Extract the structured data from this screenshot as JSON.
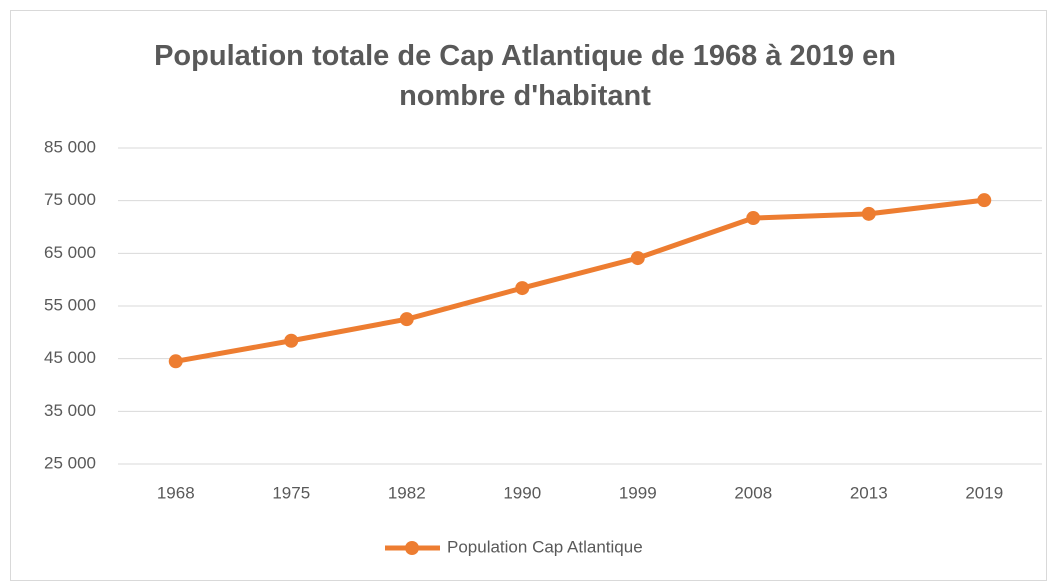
{
  "chart_data": {
    "type": "line",
    "title": "Population totale de Cap Atlantique de 1968 à 2019 en nombre d'habitant",
    "categories": [
      "1968",
      "1975",
      "1982",
      "1990",
      "1999",
      "2008",
      "2013",
      "2019"
    ],
    "series": [
      {
        "name": "Population Cap Atlantique",
        "color": "#ed7d31",
        "values": [
          44500,
          48400,
          52500,
          58400,
          64100,
          71700,
          72500,
          75100
        ]
      }
    ],
    "ylim": [
      25000,
      85000
    ],
    "yticks": [
      {
        "value": 25000,
        "label": "25 000"
      },
      {
        "value": 35000,
        "label": "35 000"
      },
      {
        "value": 45000,
        "label": "45 000"
      },
      {
        "value": 55000,
        "label": "55 000"
      },
      {
        "value": 65000,
        "label": "65 000"
      },
      {
        "value": 75000,
        "label": "75 000"
      },
      {
        "value": 85000,
        "label": "85 000"
      }
    ],
    "grid": true,
    "legend": "bottom"
  }
}
